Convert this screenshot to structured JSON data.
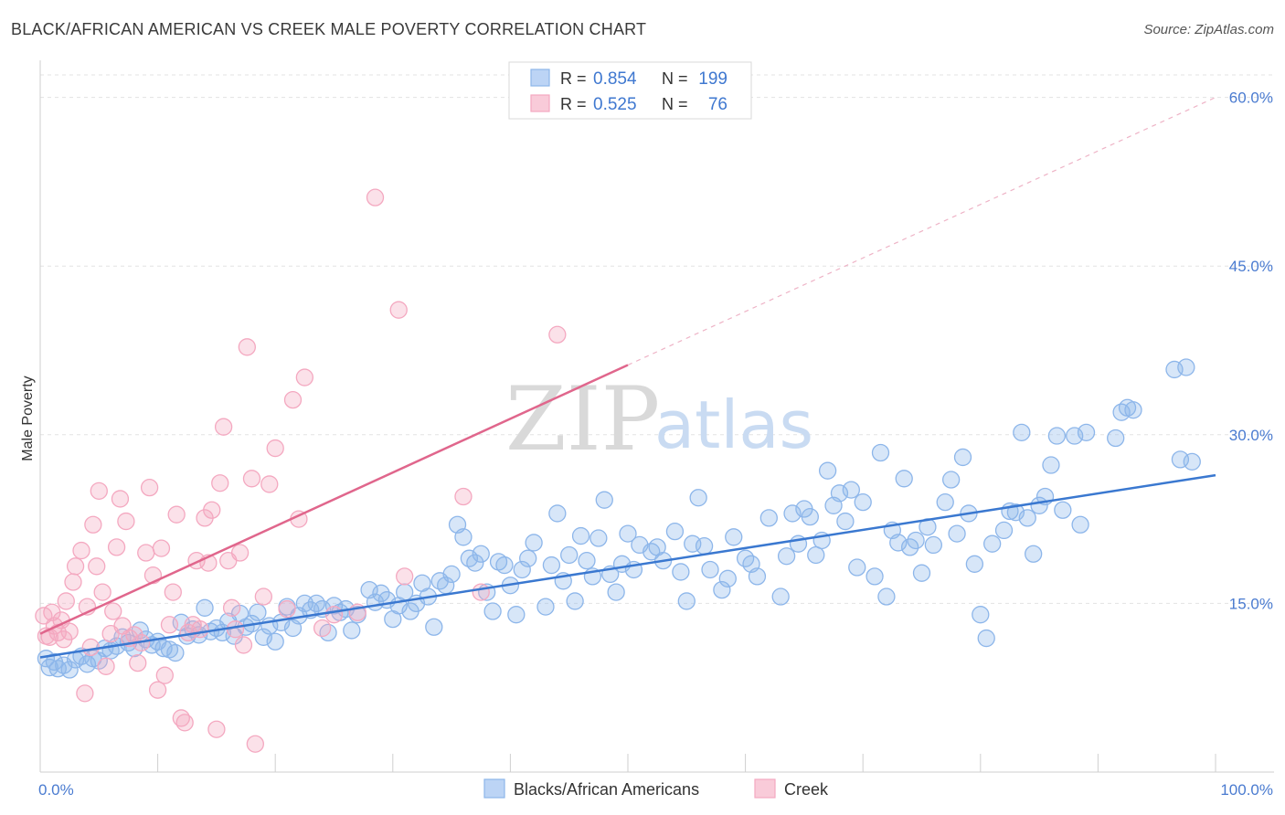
{
  "title": "BLACK/AFRICAN AMERICAN VS CREEK MALE POVERTY CORRELATION CHART",
  "source": "Source: ZipAtlas.com",
  "watermark": {
    "part1": "ZIP",
    "part2": "atlas"
  },
  "legend": {
    "entries": [
      {
        "r_label": "R = ",
        "r_value": "0.854",
        "n_label": "N = ",
        "n_value": "199",
        "color": "#8db6ea"
      },
      {
        "r_label": "R = ",
        "r_value": "0.525",
        "n_label": "N = ",
        "n_value": "76",
        "color": "#f4a8c0"
      }
    ]
  },
  "chart_data": {
    "type": "scatter",
    "title": "BLACK/AFRICAN AMERICAN VS CREEK MALE POVERTY CORRELATION CHART",
    "xlabel": "",
    "ylabel": "Male Poverty",
    "xlim": [
      0,
      100
    ],
    "ylim": [
      0,
      62
    ],
    "x_tick_labels": [
      {
        "value": 0,
        "label": "0.0%"
      },
      {
        "value": 100,
        "label": "100.0%"
      }
    ],
    "y_tick_labels": [
      {
        "value": 15,
        "label": "15.0%"
      },
      {
        "value": 30,
        "label": "30.0%"
      },
      {
        "value": 45,
        "label": "45.0%"
      },
      {
        "value": 60,
        "label": "60.0%"
      }
    ],
    "grid": "horizontal dashed",
    "legend_position": "top-center",
    "series": [
      {
        "name": "Blacks/African Americans",
        "color": "#8db6ea",
        "line_color": "#3a78d0",
        "trend": {
          "x": [
            0,
            100
          ],
          "y": [
            10.2,
            26.4
          ]
        },
        "points": [
          [
            0.5,
            10.1
          ],
          [
            0.8,
            9.3
          ],
          [
            1.2,
            9.8
          ],
          [
            1.5,
            9.2
          ],
          [
            2.0,
            9.5
          ],
          [
            2.5,
            9.1
          ],
          [
            3.0,
            10.0
          ],
          [
            3.5,
            10.3
          ],
          [
            4.0,
            9.6
          ],
          [
            4.5,
            10.1
          ],
          [
            5.0,
            9.9
          ],
          [
            5.5,
            11.0
          ],
          [
            6.0,
            10.8
          ],
          [
            6.5,
            11.2
          ],
          [
            7.0,
            12.0
          ],
          [
            7.5,
            11.5
          ],
          [
            8.0,
            11.0
          ],
          [
            8.5,
            12.6
          ],
          [
            9.0,
            11.8
          ],
          [
            9.5,
            11.3
          ],
          [
            10.0,
            11.6
          ],
          [
            10.5,
            11.0
          ],
          [
            11.0,
            10.9
          ],
          [
            11.5,
            10.6
          ],
          [
            12.0,
            13.3
          ],
          [
            12.5,
            12.1
          ],
          [
            13.0,
            12.7
          ],
          [
            13.5,
            12.2
          ],
          [
            14.0,
            14.6
          ],
          [
            14.5,
            12.5
          ],
          [
            15.0,
            12.8
          ],
          [
            15.5,
            12.4
          ],
          [
            16.0,
            13.4
          ],
          [
            16.5,
            12.1
          ],
          [
            17.0,
            14.1
          ],
          [
            17.5,
            12.9
          ],
          [
            18.0,
            13.2
          ],
          [
            18.5,
            14.2
          ],
          [
            19.0,
            12.0
          ],
          [
            19.5,
            13.0
          ],
          [
            20.0,
            11.6
          ],
          [
            20.5,
            13.3
          ],
          [
            21.0,
            14.7
          ],
          [
            21.5,
            12.8
          ],
          [
            22.0,
            13.9
          ],
          [
            22.5,
            15.0
          ],
          [
            23.0,
            14.4
          ],
          [
            23.5,
            15.0
          ],
          [
            24.0,
            14.5
          ],
          [
            24.5,
            12.4
          ],
          [
            25.0,
            14.8
          ],
          [
            25.5,
            14.2
          ],
          [
            26.0,
            14.5
          ],
          [
            26.5,
            12.6
          ],
          [
            27.0,
            14.0
          ],
          [
            28.0,
            16.2
          ],
          [
            28.5,
            15.1
          ],
          [
            29.0,
            15.9
          ],
          [
            29.5,
            15.3
          ],
          [
            30.0,
            13.6
          ],
          [
            30.5,
            14.8
          ],
          [
            31.0,
            16.0
          ],
          [
            31.5,
            14.3
          ],
          [
            32.0,
            15.0
          ],
          [
            32.5,
            16.8
          ],
          [
            33.0,
            15.6
          ],
          [
            33.5,
            12.9
          ],
          [
            34.0,
            17.0
          ],
          [
            34.5,
            16.6
          ],
          [
            35.0,
            17.6
          ],
          [
            35.5,
            22.0
          ],
          [
            36.0,
            20.9
          ],
          [
            36.5,
            19.0
          ],
          [
            37.0,
            18.6
          ],
          [
            37.5,
            19.4
          ],
          [
            38.0,
            16.0
          ],
          [
            38.5,
            14.3
          ],
          [
            39.0,
            18.7
          ],
          [
            39.5,
            18.4
          ],
          [
            40.0,
            16.6
          ],
          [
            40.5,
            14.0
          ],
          [
            41.0,
            18.0
          ],
          [
            41.5,
            19.0
          ],
          [
            42.0,
            20.4
          ],
          [
            43.0,
            14.7
          ],
          [
            43.5,
            18.4
          ],
          [
            44.0,
            23.0
          ],
          [
            44.5,
            17.0
          ],
          [
            45.0,
            19.3
          ],
          [
            45.5,
            15.2
          ],
          [
            46.0,
            21.0
          ],
          [
            46.5,
            18.8
          ],
          [
            47.0,
            17.4
          ],
          [
            47.5,
            20.8
          ],
          [
            48.0,
            24.2
          ],
          [
            48.5,
            17.6
          ],
          [
            49.0,
            16.0
          ],
          [
            49.5,
            18.5
          ],
          [
            50.0,
            21.2
          ],
          [
            50.5,
            18.0
          ],
          [
            51.0,
            20.2
          ],
          [
            52.0,
            19.6
          ],
          [
            52.5,
            20.0
          ],
          [
            53.0,
            18.8
          ],
          [
            54.0,
            21.4
          ],
          [
            54.5,
            17.8
          ],
          [
            55.0,
            15.2
          ],
          [
            55.5,
            20.3
          ],
          [
            56.0,
            24.4
          ],
          [
            56.5,
            20.1
          ],
          [
            57.0,
            18.0
          ],
          [
            58.0,
            16.2
          ],
          [
            58.5,
            17.2
          ],
          [
            59.0,
            20.9
          ],
          [
            60.0,
            19.0
          ],
          [
            60.5,
            18.5
          ],
          [
            61.0,
            17.4
          ],
          [
            62.0,
            22.6
          ],
          [
            63.0,
            15.6
          ],
          [
            63.5,
            19.2
          ],
          [
            64.0,
            23.0
          ],
          [
            64.5,
            20.3
          ],
          [
            65.0,
            23.4
          ],
          [
            65.5,
            22.7
          ],
          [
            66.0,
            19.3
          ],
          [
            66.5,
            20.6
          ],
          [
            67.0,
            26.8
          ],
          [
            67.5,
            23.7
          ],
          [
            68.0,
            24.8
          ],
          [
            68.5,
            22.3
          ],
          [
            69.0,
            25.1
          ],
          [
            69.5,
            18.2
          ],
          [
            70.0,
            24.0
          ],
          [
            71.0,
            17.4
          ],
          [
            71.5,
            28.4
          ],
          [
            72.0,
            15.6
          ],
          [
            72.5,
            21.5
          ],
          [
            73.0,
            20.4
          ],
          [
            73.5,
            26.1
          ],
          [
            74.0,
            20.0
          ],
          [
            74.5,
            20.6
          ],
          [
            75.0,
            17.7
          ],
          [
            75.5,
            21.8
          ],
          [
            76.0,
            20.2
          ],
          [
            77.0,
            24.0
          ],
          [
            77.5,
            26.0
          ],
          [
            78.0,
            21.2
          ],
          [
            78.5,
            28.0
          ],
          [
            79.0,
            23.0
          ],
          [
            79.5,
            18.5
          ],
          [
            80.0,
            14.0
          ],
          [
            80.5,
            11.9
          ],
          [
            81.0,
            20.3
          ],
          [
            82.0,
            21.5
          ],
          [
            82.5,
            23.2
          ],
          [
            83.0,
            23.1
          ],
          [
            83.5,
            30.2
          ],
          [
            84.0,
            22.6
          ],
          [
            84.5,
            19.4
          ],
          [
            85.0,
            23.7
          ],
          [
            85.5,
            24.5
          ],
          [
            86.0,
            27.3
          ],
          [
            86.5,
            29.9
          ],
          [
            87.0,
            23.3
          ],
          [
            88.0,
            29.9
          ],
          [
            88.5,
            22.0
          ],
          [
            89.0,
            30.2
          ],
          [
            91.5,
            29.7
          ],
          [
            92.0,
            32.0
          ],
          [
            92.5,
            32.4
          ],
          [
            93.0,
            32.2
          ],
          [
            96.5,
            35.8
          ],
          [
            97.0,
            27.8
          ],
          [
            97.5,
            36.0
          ],
          [
            98.0,
            27.6
          ]
        ]
      },
      {
        "name": "Creek",
        "color": "#f4a8c0",
        "line_color": "#e0668c",
        "trend": {
          "x": [
            0,
            50
          ],
          "y": [
            12.3,
            36.2
          ]
        },
        "trend_extension": {
          "x": [
            50,
            100
          ],
          "y": [
            36.2,
            60.0
          ]
        },
        "points": [
          [
            0.3,
            13.9
          ],
          [
            0.5,
            12.1
          ],
          [
            0.8,
            12.0
          ],
          [
            1.0,
            14.2
          ],
          [
            1.2,
            13.0
          ],
          [
            1.5,
            12.4
          ],
          [
            1.8,
            13.5
          ],
          [
            2.0,
            11.8
          ],
          [
            2.2,
            15.2
          ],
          [
            2.5,
            12.5
          ],
          [
            2.8,
            16.9
          ],
          [
            3.0,
            18.3
          ],
          [
            3.5,
            19.7
          ],
          [
            3.8,
            7.0
          ],
          [
            4.0,
            14.7
          ],
          [
            4.3,
            11.1
          ],
          [
            4.5,
            22.0
          ],
          [
            4.8,
            18.3
          ],
          [
            5.0,
            25.0
          ],
          [
            5.3,
            16.0
          ],
          [
            5.6,
            9.4
          ],
          [
            6.0,
            12.3
          ],
          [
            6.2,
            14.3
          ],
          [
            6.5,
            20.0
          ],
          [
            6.8,
            24.3
          ],
          [
            7.0,
            13.0
          ],
          [
            7.3,
            22.3
          ],
          [
            7.6,
            11.9
          ],
          [
            8.0,
            12.2
          ],
          [
            8.3,
            9.7
          ],
          [
            8.6,
            11.5
          ],
          [
            9.0,
            19.5
          ],
          [
            9.3,
            25.3
          ],
          [
            9.6,
            17.5
          ],
          [
            10.0,
            7.3
          ],
          [
            10.3,
            19.9
          ],
          [
            10.6,
            8.6
          ],
          [
            11.0,
            13.1
          ],
          [
            11.3,
            16.0
          ],
          [
            11.6,
            22.9
          ],
          [
            12.0,
            4.8
          ],
          [
            12.3,
            4.4
          ],
          [
            12.6,
            12.4
          ],
          [
            13.0,
            13.1
          ],
          [
            13.3,
            18.8
          ],
          [
            13.6,
            12.7
          ],
          [
            14.0,
            22.6
          ],
          [
            14.3,
            18.6
          ],
          [
            14.6,
            23.3
          ],
          [
            15.0,
            3.8
          ],
          [
            15.3,
            25.7
          ],
          [
            15.6,
            30.7
          ],
          [
            16.0,
            18.8
          ],
          [
            16.3,
            14.6
          ],
          [
            16.6,
            12.7
          ],
          [
            17.0,
            19.5
          ],
          [
            17.3,
            11.3
          ],
          [
            17.6,
            37.8
          ],
          [
            18.0,
            26.1
          ],
          [
            18.3,
            2.5
          ],
          [
            19.0,
            15.6
          ],
          [
            19.5,
            25.6
          ],
          [
            20.0,
            28.8
          ],
          [
            21.0,
            14.5
          ],
          [
            21.5,
            33.1
          ],
          [
            22.0,
            22.5
          ],
          [
            22.5,
            35.1
          ],
          [
            24.0,
            12.8
          ],
          [
            25.0,
            14.0
          ],
          [
            27.0,
            14.2
          ],
          [
            28.5,
            51.1
          ],
          [
            30.5,
            41.1
          ],
          [
            31.0,
            17.4
          ],
          [
            36.0,
            24.5
          ],
          [
            37.5,
            16.0
          ],
          [
            44.0,
            38.9
          ]
        ]
      }
    ]
  }
}
